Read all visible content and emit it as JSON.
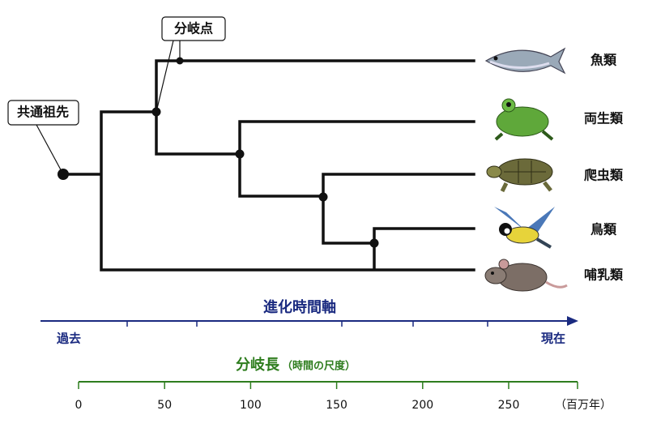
{
  "callouts": {
    "branch_point": "分岐点",
    "common_ancestor": "共通祖先"
  },
  "taxa": [
    "魚類",
    "両生類",
    "爬虫類",
    "鳥類",
    "哺乳類"
  ],
  "evolution_axis": {
    "title": "進化時間軸",
    "start": "過去",
    "end": "現在"
  },
  "scale": {
    "title": "分岐長",
    "subtitle": "（時間の尺度）",
    "ticks": [
      0,
      50,
      100,
      150,
      200,
      250
    ],
    "unit": "（百万年）"
  }
}
